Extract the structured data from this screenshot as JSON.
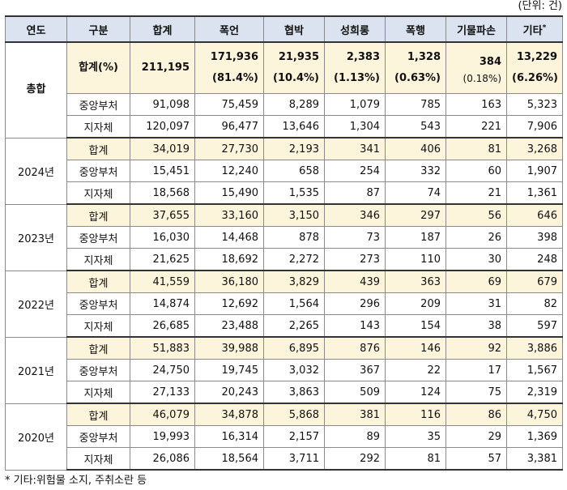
{
  "unit_label": "(단위: 건)",
  "headers": [
    "연도",
    "구분",
    "합계",
    "폭언",
    "협박",
    "성희롱",
    "폭행",
    "기물파손",
    "기타"
  ],
  "header_sup": "*",
  "total_block": {
    "year": "총합",
    "sum_label": "합계(%)",
    "sum_values": [
      "211,195",
      "171,936",
      "21,935",
      "2,383",
      "1,328",
      "384",
      "13,229"
    ],
    "sum_pcts": [
      "",
      "(81.4%)",
      "(10.4%)",
      "(1.13%)",
      "(0.63%)",
      "(0.18%)",
      "(6.26%)"
    ],
    "rows": [
      {
        "label": "중앙부처",
        "values": [
          "91,098",
          "75,459",
          "8,289",
          "1,079",
          "785",
          "163",
          "5,323"
        ]
      },
      {
        "label": "지자체",
        "values": [
          "120,097",
          "96,477",
          "13,646",
          "1,304",
          "543",
          "221",
          "7,906"
        ]
      }
    ]
  },
  "years": [
    {
      "year": "2024년",
      "rows": [
        {
          "label": "합계",
          "values": [
            "34,019",
            "27,730",
            "2,193",
            "341",
            "406",
            "81",
            "3,268"
          ]
        },
        {
          "label": "중앙부처",
          "values": [
            "15,451",
            "12,240",
            "658",
            "254",
            "332",
            "60",
            "1,907"
          ]
        },
        {
          "label": "지자체",
          "values": [
            "18,568",
            "15,490",
            "1,535",
            "87",
            "74",
            "21",
            "1,361"
          ]
        }
      ]
    },
    {
      "year": "2023년",
      "rows": [
        {
          "label": "합계",
          "values": [
            "37,655",
            "33,160",
            "3,150",
            "346",
            "297",
            "56",
            "646"
          ]
        },
        {
          "label": "중앙부처",
          "values": [
            "16,030",
            "14,468",
            "878",
            "73",
            "187",
            "26",
            "398"
          ]
        },
        {
          "label": "지자체",
          "values": [
            "21,625",
            "18,692",
            "2,272",
            "273",
            "110",
            "30",
            "248"
          ]
        }
      ]
    },
    {
      "year": "2022년",
      "rows": [
        {
          "label": "합계",
          "values": [
            "41,559",
            "36,180",
            "3,829",
            "439",
            "363",
            "69",
            "679"
          ]
        },
        {
          "label": "중앙부처",
          "values": [
            "14,874",
            "12,692",
            "1,564",
            "296",
            "209",
            "31",
            "82"
          ]
        },
        {
          "label": "지자체",
          "values": [
            "26,685",
            "23,488",
            "2,265",
            "143",
            "154",
            "38",
            "597"
          ]
        }
      ]
    },
    {
      "year": "2021년",
      "rows": [
        {
          "label": "합계",
          "values": [
            "51,883",
            "39,988",
            "6,895",
            "876",
            "146",
            "92",
            "3,886"
          ]
        },
        {
          "label": "중앙부처",
          "values": [
            "24,750",
            "19,745",
            "3,032",
            "367",
            "22",
            "17",
            "1,567"
          ]
        },
        {
          "label": "지자체",
          "values": [
            "27,133",
            "20,243",
            "3,863",
            "509",
            "124",
            "75",
            "2,319"
          ]
        }
      ]
    },
    {
      "year": "2020년",
      "rows": [
        {
          "label": "합계",
          "values": [
            "46,079",
            "34,878",
            "5,868",
            "381",
            "116",
            "86",
            "4,750"
          ]
        },
        {
          "label": "중앙부처",
          "values": [
            "19,993",
            "16,314",
            "2,157",
            "89",
            "35",
            "29",
            "1,369"
          ]
        },
        {
          "label": "지자체",
          "values": [
            "26,086",
            "18,564",
            "3,711",
            "292",
            "81",
            "57",
            "3,381"
          ]
        }
      ]
    }
  ],
  "footnote": "* 기타:위험물 소지, 주취소란 등"
}
